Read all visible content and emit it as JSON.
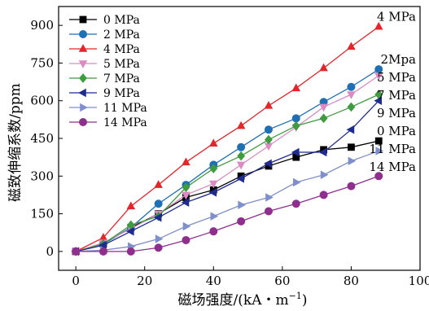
{
  "chart_data": {
    "type": "line",
    "title": "",
    "xlabel": "磁场强度/(kA・m",
    "xlabel_superscript": "−1",
    "xlabel_close": ")",
    "ylabel": "磁致伸缩系数/ppm",
    "xlim": [
      -5,
      100
    ],
    "ylim": [
      -75,
      975
    ],
    "xticks": [
      0,
      20,
      40,
      60,
      80,
      100
    ],
    "yticks": [
      0,
      150,
      300,
      450,
      600,
      750,
      900
    ],
    "x": [
      0,
      8,
      16,
      24,
      32,
      40,
      48,
      56,
      64,
      72,
      80,
      88
    ],
    "legend_position": "top-left",
    "grid": false,
    "series": [
      {
        "name": "0 MPa",
        "end_label": "0 MPa",
        "color": "#000000",
        "marker": "square",
        "values": [
          0,
          30,
          95,
          150,
          215,
          245,
          300,
          340,
          375,
          405,
          415,
          440
        ]
      },
      {
        "name": "2 MPa",
        "end_label": "2Mpa",
        "color": "#1f6fb4",
        "marker": "circle",
        "values": [
          0,
          30,
          95,
          190,
          265,
          345,
          415,
          485,
          530,
          595,
          655,
          725
        ]
      },
      {
        "name": "4 MPa",
        "end_label": "4 MPa",
        "color": "#e4262a",
        "marker": "triangle-up",
        "values": [
          0,
          55,
          180,
          265,
          355,
          430,
          500,
          580,
          650,
          730,
          815,
          895
        ]
      },
      {
        "name": "5 MPa",
        "end_label": "5 MPa",
        "color": "#d98bc2",
        "marker": "triangle-down",
        "values": [
          0,
          35,
          90,
          150,
          225,
          270,
          345,
          420,
          495,
          575,
          625,
          700
        ]
      },
      {
        "name": "7 MPa",
        "end_label": "7 MPa",
        "color": "#3f9b3f",
        "marker": "diamond",
        "values": [
          0,
          30,
          105,
          140,
          255,
          330,
          380,
          445,
          500,
          530,
          575,
          625
        ]
      },
      {
        "name": "9 MPa",
        "end_label": "9 MPa",
        "color": "#1f2b8f",
        "marker": "triangle-left",
        "values": [
          0,
          25,
          80,
          135,
          195,
          235,
          290,
          350,
          395,
          395,
          485,
          600
        ]
      },
      {
        "name": "11 MPa",
        "end_label": "11 MPa",
        "color": "#7f8fcc",
        "marker": "triangle-right",
        "values": [
          0,
          5,
          20,
          50,
          100,
          140,
          185,
          215,
          275,
          305,
          360,
          400
        ]
      },
      {
        "name": "14 MPa",
        "end_label": "14 MPa",
        "color": "#8e2f8e",
        "marker": "circle",
        "values": [
          0,
          0,
          0,
          15,
          45,
          80,
          120,
          160,
          190,
          225,
          260,
          300
        ]
      }
    ]
  }
}
